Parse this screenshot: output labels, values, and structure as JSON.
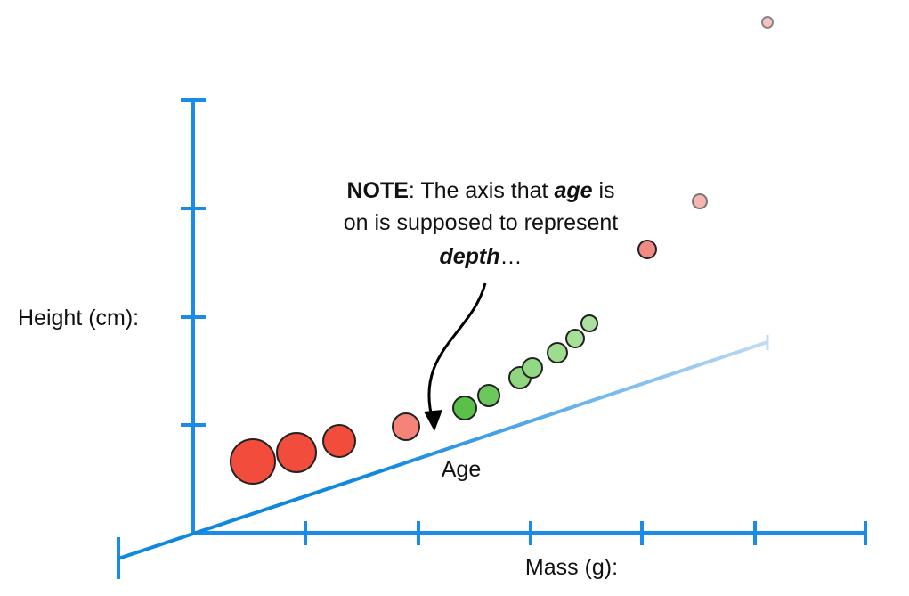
{
  "axes": {
    "y_label": "Height (cm):",
    "x_label": "Mass (g):",
    "depth_label": "Age"
  },
  "note": {
    "lines": [
      [
        {
          "text": "NOTE",
          "bold": true
        },
        {
          "text": ": The axis that "
        },
        {
          "text": "age",
          "bold": true,
          "italic": true
        },
        {
          "text": " is"
        }
      ],
      [
        {
          "text": "on is supposed to represent"
        }
      ],
      [
        {
          "text": "depth",
          "bold": true,
          "italic": true
        },
        {
          "text": "…"
        }
      ]
    ]
  }
}
